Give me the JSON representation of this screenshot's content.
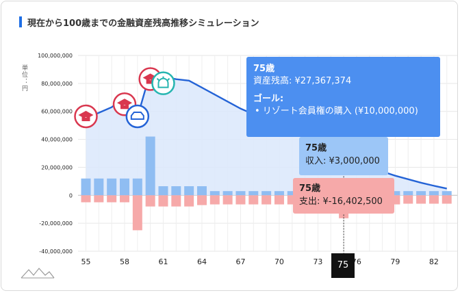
{
  "header": {
    "title": "現在から100歳までの金融資産残高推移シミュレーション"
  },
  "y_unit_label": "単位：円",
  "chart_data": {
    "type": "bar+line",
    "title": "現在から100歳までの金融資産残高推移シミュレーション",
    "ylabel": "単位：円",
    "ylim": [
      -40000000,
      100000000
    ],
    "yticks": [
      100000000,
      80000000,
      60000000,
      40000000,
      20000000,
      0,
      -20000000,
      -40000000
    ],
    "ytick_labels": [
      "100,000,000",
      "80,000,000",
      "60,000,000",
      "40,000,000",
      "20,000,000",
      "0",
      "-20,000,000",
      "-40,000,000"
    ],
    "x": [
      55,
      56,
      57,
      58,
      59,
      60,
      61,
      62,
      63,
      64,
      65,
      66,
      67,
      68,
      69,
      70,
      71,
      72,
      73,
      74,
      75,
      76,
      77,
      78,
      79,
      80,
      81,
      82,
      83
    ],
    "xtick_labels": [
      "55",
      "58",
      "61",
      "64",
      "67",
      "70",
      "73",
      "76",
      "79",
      "82"
    ],
    "series": [
      {
        "name": "資産残高",
        "kind": "line+area",
        "color": "#2463d6",
        "values": [
          55000000,
          59000000,
          63000000,
          70000000,
          56000000,
          88000000,
          85000000,
          83000000,
          82000000,
          77000000,
          72000000,
          67000000,
          62000000,
          58000000,
          54000000,
          50000000,
          46000000,
          42000000,
          38000000,
          33000000,
          27367374,
          23000000,
          20000000,
          17000000,
          14000000,
          11500000,
          9000000,
          6800000,
          4800000
        ]
      },
      {
        "name": "収入",
        "kind": "bar",
        "color": "#8fbdf2",
        "values": [
          12000000,
          12000000,
          12000000,
          12000000,
          12000000,
          42000000,
          6500000,
          6500000,
          6500000,
          6500000,
          3000000,
          3000000,
          3000000,
          3000000,
          3000000,
          3000000,
          3000000,
          3000000,
          3000000,
          3000000,
          3000000,
          3000000,
          3000000,
          3000000,
          3000000,
          3000000,
          3000000,
          3000000,
          3000000
        ]
      },
      {
        "name": "支出",
        "kind": "bar",
        "color": "#f6a9a9",
        "values": [
          -5000000,
          -5000000,
          -5000000,
          -5000000,
          -25000000,
          -8000000,
          -8000000,
          -8000000,
          -8000000,
          -7000000,
          -6500000,
          -6500000,
          -6500000,
          -6500000,
          -6500000,
          -6500000,
          -6500000,
          -6500000,
          -6500000,
          -6500000,
          -16402500,
          -6500000,
          -6500000,
          -6500000,
          -6500000,
          -6000000,
          -6000000,
          -6000000,
          -6000000
        ]
      }
    ],
    "goal_markers": [
      {
        "age": 55,
        "icon": "graduation-cap-icon",
        "color": "#d9374f"
      },
      {
        "age": 58,
        "icon": "graduation-cap-icon",
        "color": "#d9374f"
      },
      {
        "age": 59,
        "icon": "car-icon",
        "color": "#2463d6"
      },
      {
        "age": 60,
        "icon": "graduation-cap-icon",
        "color": "#d9374f"
      },
      {
        "age": 61,
        "icon": "alarm-icon",
        "color": "#26b5b0"
      }
    ],
    "hover_age": 75
  },
  "tooltip": {
    "age": "75歳",
    "balance": "資産残高: ¥27,367,374",
    "goal_heading": "ゴール:",
    "goal_item": "• リゾート会員権の購入 (¥10,000,000)",
    "income_age": "75歳",
    "income": "収入: ¥3,000,000",
    "expense_age": "75歳",
    "expense": "支出: ¥-16,402,500"
  },
  "x_hover_label": "75",
  "colors": {
    "accent": "#1f6fe5",
    "line": "#2463d6",
    "income": "#8fbdf2",
    "expense": "#f6a9a9",
    "tooltip": "#4c8ff0"
  }
}
